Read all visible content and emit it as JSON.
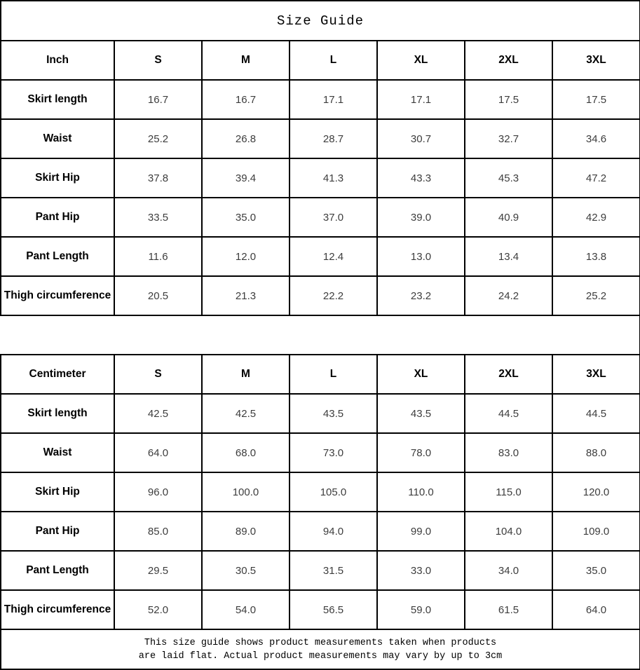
{
  "title": "Size Guide",
  "inch_table": {
    "unit_header": "Inch",
    "columns": [
      "S",
      "M",
      "L",
      "XL",
      "2XL",
      "3XL"
    ],
    "rows": [
      {
        "label": "Skirt length",
        "values": [
          "16.7",
          "16.7",
          "17.1",
          "17.1",
          "17.5",
          "17.5"
        ]
      },
      {
        "label": "Waist",
        "values": [
          "25.2",
          "26.8",
          "28.7",
          "30.7",
          "32.7",
          "34.6"
        ]
      },
      {
        "label": "Skirt Hip",
        "values": [
          "37.8",
          "39.4",
          "41.3",
          "43.3",
          "45.3",
          "47.2"
        ]
      },
      {
        "label": "Pant Hip",
        "values": [
          "33.5",
          "35.0",
          "37.0",
          "39.0",
          "40.9",
          "42.9"
        ]
      },
      {
        "label": "Pant Length",
        "values": [
          "11.6",
          "12.0",
          "12.4",
          "13.0",
          "13.4",
          "13.8"
        ]
      },
      {
        "label": "Thigh circumference",
        "values": [
          "20.5",
          "21.3",
          "22.2",
          "23.2",
          "24.2",
          "25.2"
        ]
      }
    ]
  },
  "cm_table": {
    "unit_header": "Centimeter",
    "columns": [
      "S",
      "M",
      "L",
      "XL",
      "2XL",
      "3XL"
    ],
    "rows": [
      {
        "label": "Skirt length",
        "values": [
          "42.5",
          "42.5",
          "43.5",
          "43.5",
          "44.5",
          "44.5"
        ]
      },
      {
        "label": "Waist",
        "values": [
          "64.0",
          "68.0",
          "73.0",
          "78.0",
          "83.0",
          "88.0"
        ]
      },
      {
        "label": "Skirt Hip",
        "values": [
          "96.0",
          "100.0",
          "105.0",
          "110.0",
          "115.0",
          "120.0"
        ]
      },
      {
        "label": "Pant Hip",
        "values": [
          "85.0",
          "89.0",
          "94.0",
          "99.0",
          "104.0",
          "109.0"
        ]
      },
      {
        "label": "Pant Length",
        "values": [
          "29.5",
          "30.5",
          "31.5",
          "33.0",
          "34.0",
          "35.0"
        ]
      },
      {
        "label": "Thigh circumference",
        "values": [
          "52.0",
          "54.0",
          "56.5",
          "59.0",
          "61.5",
          "64.0"
        ]
      }
    ]
  },
  "footer": {
    "line1": "This size guide shows product measurements taken when products",
    "line2": "are laid flat. Actual product measurements may vary by up to 3cm"
  }
}
